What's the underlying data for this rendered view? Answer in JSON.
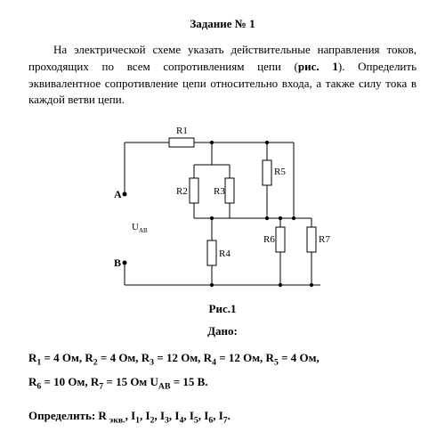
{
  "title": "Задание № 1",
  "paragraph_parts": {
    "p1": "На электрической схеме указать действительные направления токов, проходящих по всем сопротивлениям цепи (",
    "ref": "рис. 1",
    "p2": "). Определить эквивалентное сопротивление цепи относительно входа, а также силу тока в каждой ветви цепи."
  },
  "circuit": {
    "labels": {
      "R1": "R1",
      "R2": "R2",
      "R3": "R3",
      "R4": "R4",
      "R5": "R5",
      "R6": "R6",
      "R7": "R7",
      "A": "A",
      "B": "B",
      "UAB": "U"
    },
    "uab_sub": "AB",
    "stroke": "#000000",
    "stroke_width": 1,
    "resistor": {
      "long": 24,
      "short": 10
    }
  },
  "fig_caption": "Рис.1",
  "dano": "Дано:",
  "values_line1_html": "R<sub>1</sub> = 4 Ом, R<sub>2</sub> = 4 Ом, R<sub>3</sub> = 12 Ом, R<sub>4</sub> = 12 Ом, R<sub>5</sub> = 4 Ом,",
  "values_line2_html": "R<sub>6</sub> = 10 Ом, R<sub>7</sub> = 15 Ом U<sub>AB</sub> = 15 В.",
  "find_html": "Определить: R <sub>экв.</sub>, I<sub>1</sub>, I<sub>2</sub>, I<sub>3</sub>, I<sub>4</sub>, I<sub>5</sub>, I<sub>6</sub>, I<sub>7</sub>."
}
